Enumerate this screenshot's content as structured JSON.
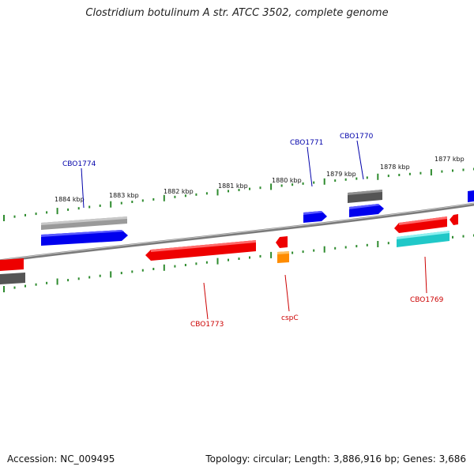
{
  "title": "Clostridium botulinum A str. ATCC 3502, complete genome",
  "footer": {
    "accession": "Accession: NC_009495",
    "summary": "Topology: circular; Length: 3,886,916 bp; Genes: 3,686"
  },
  "colors": {
    "backbone": "#7a7a7a",
    "tick": "#2e8b2e",
    "forward_cds": "#0000ee",
    "reverse_cds": "#ee0000",
    "gray_feature": "#9a9a9a",
    "dark_feature": "#555555",
    "cyan_feature": "#20c8c8",
    "orange_feature": "#ff8c00",
    "forward_label": "#0000aa",
    "reverse_label": "#cc0000"
  },
  "ruler": {
    "labels": [
      "1884 kbp",
      "1883 kbp",
      "1882 kbp",
      "1881 kbp",
      "1880 kbp",
      "1879 kbp",
      "1878 kbp",
      "1877 kbp"
    ]
  },
  "gene_labels": {
    "forward": [
      "CBO1774",
      "CBO1771",
      "CBO1770"
    ],
    "reverse": [
      "CBO1773",
      "cspC",
      "CBO1769"
    ]
  }
}
